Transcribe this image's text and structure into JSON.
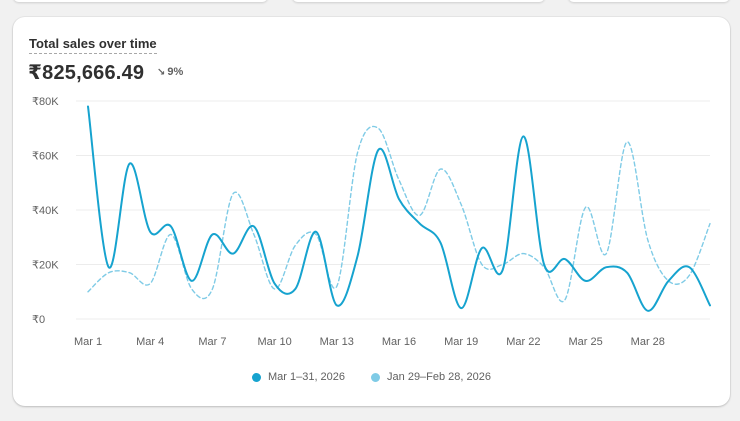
{
  "card": {
    "title": "Total sales over time",
    "total": "₹825,666.49",
    "change_arrow": "↘",
    "change": "9%"
  },
  "colors": {
    "current": "#16a3cf",
    "previous": "#7fcbe6",
    "grid": "#ececec",
    "text": "#616161"
  },
  "legend": {
    "current": "Mar 1–31, 2026",
    "previous": "Jan 29–Feb 28, 2026"
  },
  "chart_data": {
    "type": "line",
    "ylim": [
      0,
      80000
    ],
    "y_ticks": [
      0,
      20000,
      40000,
      60000,
      80000
    ],
    "y_tick_labels": [
      "₹0",
      "₹20K",
      "₹40K",
      "₹60K",
      "₹80K"
    ],
    "x_tick_labels": [
      "Mar 1",
      "Mar 4",
      "Mar 7",
      "Mar 10",
      "Mar 13",
      "Mar 16",
      "Mar 19",
      "Mar 22",
      "Mar 25",
      "Mar 28"
    ],
    "x_tick_days": [
      1,
      4,
      7,
      10,
      13,
      16,
      19,
      22,
      25,
      28
    ],
    "x_days": [
      1,
      2,
      3,
      4,
      5,
      6,
      7,
      8,
      9,
      10,
      11,
      12,
      13,
      14,
      15,
      16,
      17,
      18,
      19,
      20,
      21,
      22,
      23,
      24,
      25,
      26,
      27,
      28,
      29,
      30,
      31
    ],
    "grid": true,
    "legend_position": "bottom",
    "series": [
      {
        "name": "Mar 1–31, 2026",
        "style": "solid",
        "values": [
          78000,
          19000,
          57000,
          32000,
          34000,
          14000,
          31000,
          24000,
          34000,
          13000,
          11000,
          32000,
          5000,
          23000,
          62000,
          44000,
          35000,
          28000,
          4000,
          26000,
          18000,
          67000,
          20000,
          22000,
          14000,
          19000,
          17000,
          3000,
          14000,
          19000,
          5000
        ]
      },
      {
        "name": "Jan 29–Feb 28, 2026",
        "style": "dashed",
        "values": [
          10000,
          17000,
          17000,
          13000,
          31000,
          11000,
          11000,
          46000,
          31000,
          11000,
          27000,
          31000,
          12000,
          61000,
          70000,
          51000,
          38000,
          55000,
          42000,
          20000,
          20000,
          24000,
          19000,
          7000,
          41000,
          24000,
          65000,
          29000,
          14000,
          16000,
          35000
        ]
      }
    ]
  }
}
